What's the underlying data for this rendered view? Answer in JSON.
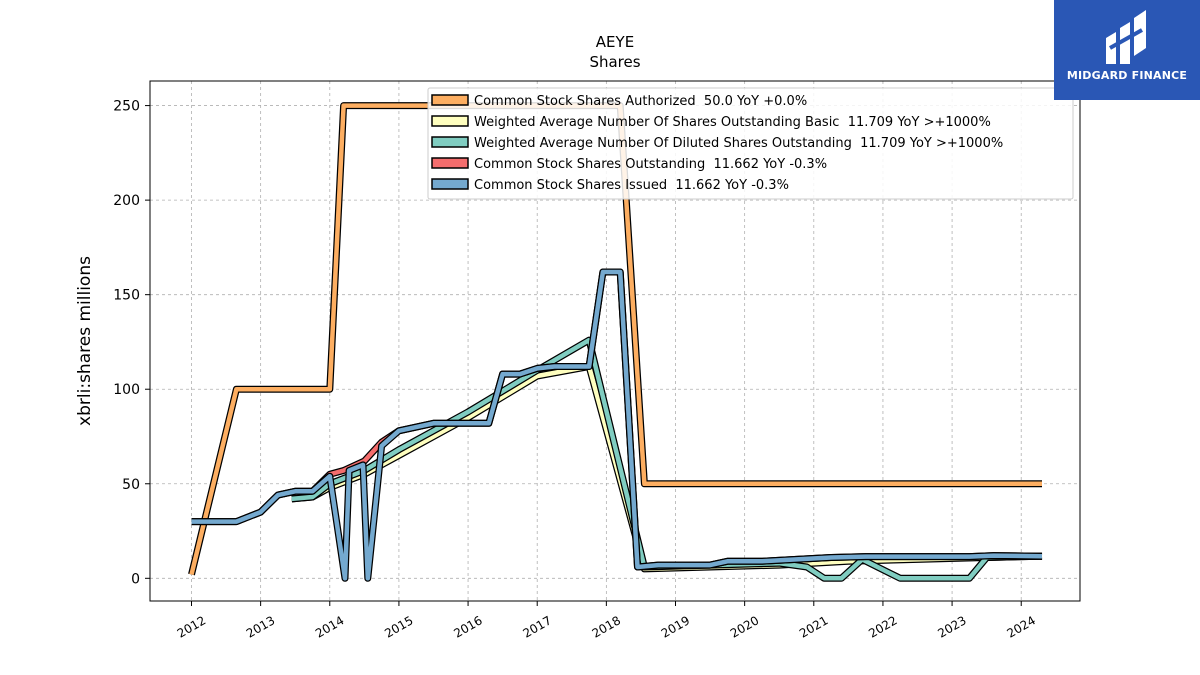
{
  "chart_data": {
    "type": "line",
    "title": "AEYE",
    "subtitle": "Shares",
    "ylabel": "xbrli:shares millions",
    "xlabel": "",
    "x_ticks": [
      "2012",
      "2013",
      "2014",
      "2015",
      "2016",
      "2017",
      "2018",
      "2019",
      "2020",
      "2021",
      "2022",
      "2023",
      "2024"
    ],
    "y_ticks": [
      0,
      50,
      100,
      150,
      200,
      250
    ],
    "xlim": [
      2011.4,
      2024.85
    ],
    "ylim": [
      -12,
      263
    ],
    "grid": true,
    "legend_position": "top-right",
    "series": [
      {
        "name": "Common Stock Shares Authorized",
        "legend": "Common Stock Shares Authorized  50.0 YoY +0.0%",
        "color": "#fdae61",
        "points": [
          [
            2012.0,
            2
          ],
          [
            2012.65,
            100
          ],
          [
            2014.0,
            100
          ],
          [
            2014.2,
            250
          ],
          [
            2018.2,
            250
          ],
          [
            2018.55,
            50
          ],
          [
            2024.3,
            50
          ]
        ]
      },
      {
        "name": "Weighted Average Number Of Shares Outstanding Basic",
        "legend": "Weighted Average Number Of Shares Outstanding Basic  11.709 YoY >+1000%",
        "color": "#ffffbf",
        "points": [
          [
            2013.45,
            42
          ],
          [
            2013.75,
            43
          ],
          [
            2014.0,
            48
          ],
          [
            2014.5,
            55
          ],
          [
            2015.0,
            65
          ],
          [
            2016.0,
            85
          ],
          [
            2017.0,
            107
          ],
          [
            2017.75,
            112
          ],
          [
            2018.55,
            5
          ],
          [
            2019.5,
            6
          ],
          [
            2020.5,
            7
          ],
          [
            2021.5,
            9
          ],
          [
            2022.5,
            10
          ],
          [
            2023.5,
            11
          ],
          [
            2024.3,
            11.7
          ]
        ]
      },
      {
        "name": "Weighted Average Number Of Diluted Shares Outstanding",
        "legend": "Weighted Average Number Of Diluted Shares Outstanding  11.709 YoY >+1000%",
        "color": "#80cdc1",
        "points": [
          [
            2013.45,
            42
          ],
          [
            2013.75,
            43
          ],
          [
            2014.0,
            50
          ],
          [
            2014.5,
            57
          ],
          [
            2015.0,
            68
          ],
          [
            2016.0,
            88
          ],
          [
            2017.0,
            110
          ],
          [
            2017.75,
            126
          ],
          [
            2018.55,
            6
          ],
          [
            2019.5,
            7
          ],
          [
            2020.5,
            8
          ],
          [
            2020.9,
            6
          ],
          [
            2021.15,
            0
          ],
          [
            2021.4,
            0
          ],
          [
            2021.7,
            10
          ],
          [
            2022.25,
            0
          ],
          [
            2023.25,
            0
          ],
          [
            2023.5,
            11
          ],
          [
            2024.3,
            11.7
          ]
        ]
      },
      {
        "name": "Common Stock Shares Outstanding",
        "legend": "Common Stock Shares Outstanding  11.662 YoY -0.3%",
        "color": "#f46d6d",
        "points": [
          [
            2012.0,
            30
          ],
          [
            2012.65,
            30
          ],
          [
            2013.0,
            35
          ],
          [
            2013.25,
            44
          ],
          [
            2013.5,
            46
          ],
          [
            2013.75,
            46
          ],
          [
            2014.0,
            55
          ],
          [
            2014.2,
            57
          ],
          [
            2014.5,
            62
          ],
          [
            2014.75,
            72
          ],
          [
            2015.0,
            78
          ],
          [
            2015.5,
            82
          ],
          [
            2016.3,
            82
          ],
          [
            2016.5,
            108
          ],
          [
            2016.75,
            108
          ],
          [
            2017.0,
            111
          ],
          [
            2017.25,
            112
          ],
          [
            2017.75,
            112
          ],
          [
            2017.95,
            162
          ],
          [
            2018.2,
            162
          ],
          [
            2018.45,
            6
          ],
          [
            2018.75,
            7
          ],
          [
            2019.5,
            7
          ],
          [
            2019.75,
            9
          ],
          [
            2020.25,
            9
          ],
          [
            2020.75,
            10
          ],
          [
            2021.25,
            11
          ],
          [
            2021.75,
            11.5
          ],
          [
            2023.25,
            11.5
          ],
          [
            2023.6,
            12
          ],
          [
            2024.3,
            11.7
          ]
        ]
      },
      {
        "name": "Common Stock Shares Issued",
        "legend": "Common Stock Shares Issued  11.662 YoY -0.3%",
        "color": "#74a9cf",
        "points": [
          [
            2012.0,
            30
          ],
          [
            2012.65,
            30
          ],
          [
            2013.0,
            35
          ],
          [
            2013.25,
            44
          ],
          [
            2013.5,
            46
          ],
          [
            2013.75,
            46
          ],
          [
            2014.0,
            54
          ],
          [
            2014.22,
            0
          ],
          [
            2014.28,
            57
          ],
          [
            2014.48,
            60
          ],
          [
            2014.55,
            0
          ],
          [
            2014.75,
            70
          ],
          [
            2015.0,
            78
          ],
          [
            2015.5,
            82
          ],
          [
            2016.3,
            82
          ],
          [
            2016.5,
            108
          ],
          [
            2016.75,
            108
          ],
          [
            2017.0,
            111
          ],
          [
            2017.25,
            112
          ],
          [
            2017.75,
            112
          ],
          [
            2017.95,
            162
          ],
          [
            2018.2,
            162
          ],
          [
            2018.45,
            6
          ],
          [
            2018.75,
            7
          ],
          [
            2019.5,
            7
          ],
          [
            2019.75,
            9
          ],
          [
            2020.25,
            9
          ],
          [
            2020.75,
            10
          ],
          [
            2021.25,
            11
          ],
          [
            2021.75,
            11.5
          ],
          [
            2023.25,
            11.5
          ],
          [
            2023.6,
            12
          ],
          [
            2024.3,
            11.7
          ]
        ]
      }
    ]
  },
  "logo": {
    "text": "MIDGARD FINANCE"
  }
}
